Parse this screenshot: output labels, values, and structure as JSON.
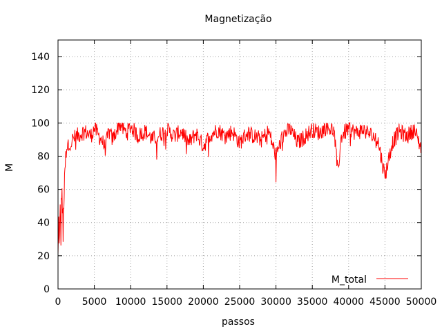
{
  "chart_data": {
    "type": "line",
    "title": "Magnetização",
    "xlabel": "passos",
    "ylabel": "M",
    "xlim": [
      0,
      50000
    ],
    "ylim": [
      0,
      150
    ],
    "xticks": [
      0,
      5000,
      10000,
      15000,
      20000,
      25000,
      30000,
      35000,
      40000,
      45000,
      50000
    ],
    "yticks": [
      0,
      20,
      40,
      60,
      80,
      100,
      120,
      140
    ],
    "grid": true,
    "legend_position": "bottom-right",
    "series": [
      {
        "name": "M_total",
        "color": "#ff0000",
        "x": [
          0,
          100,
          200,
          300,
          400,
          500,
          600,
          700,
          800,
          900,
          1000,
          1200,
          1400,
          1600,
          1800,
          2000,
          2500,
          3000,
          3500,
          4000,
          4500,
          5000,
          5500,
          6000,
          6500,
          7000,
          7500,
          8000,
          8500,
          9000,
          9500,
          10000,
          11000,
          12000,
          13000,
          14000,
          15000,
          16000,
          17000,
          18000,
          19000,
          20000,
          21000,
          22000,
          23000,
          24000,
          25000,
          26000,
          27000,
          28000,
          29000,
          30000,
          31000,
          32000,
          33000,
          34000,
          35000,
          36000,
          37000,
          38000,
          38500,
          39000,
          40000,
          41000,
          42000,
          43000,
          44000,
          45000,
          46000,
          47000,
          48000,
          49000,
          50000
        ],
        "values": [
          18,
          40,
          28,
          45,
          32,
          62,
          50,
          30,
          55,
          60,
          75,
          80,
          86,
          85,
          88,
          90,
          92,
          93,
          95,
          94,
          92,
          97,
          93,
          90,
          85,
          95,
          90,
          95,
          100,
          96,
          94,
          98,
          92,
          95,
          90,
          93,
          96,
          92,
          95,
          88,
          94,
          86,
          93,
          96,
          92,
          95,
          88,
          94,
          92,
          90,
          95,
          80,
          93,
          96,
          88,
          92,
          96,
          94,
          98,
          95,
          70,
          92,
          97,
          94,
          96,
          93,
          90,
          68,
          88,
          95,
          92,
          96,
          85
        ]
      }
    ]
  }
}
